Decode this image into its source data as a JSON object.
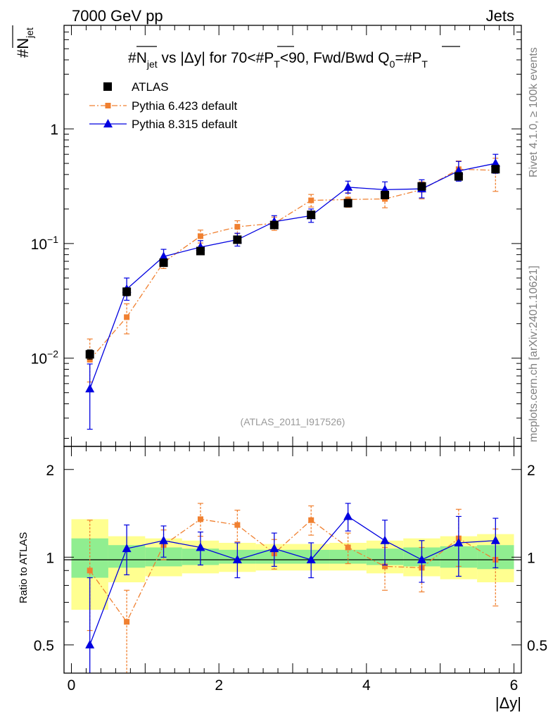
{
  "header": {
    "left": "7000 GeV pp",
    "right": "Jets"
  },
  "side_labels": {
    "rivet": "Rivet 4.1.0, ≥ 100k events",
    "mcplots": "mcplots.cern.ch [arXiv:2401.10621]"
  },
  "colors": {
    "atlas": "#000000",
    "pythia6": "#f08030",
    "pythia8": "#0000e0",
    "band_inner": "#90ee90",
    "band_outer": "#ffff90"
  },
  "chart_data": [
    {
      "type": "scatter",
      "title_parts": {
        "a": "#N",
        "a_sub": "jet",
        "b": " vs |Δy| for 70<#P",
        "b_sub": "T",
        "c": "<90, Fwd/Bwd Q",
        "c_sub": "0",
        "d": "=#P",
        "d_sub": "T"
      },
      "ylabel": {
        "main": "#N",
        "sub": "jet"
      },
      "yscale": "log",
      "ylim": [
        0.0017,
        8
      ],
      "xlim": [
        -0.1,
        6.1
      ],
      "y_major_ticks": [
        {
          "value": 0.01,
          "label_base": "10",
          "label_exp": "−2"
        },
        {
          "value": 0.1,
          "label_base": "10",
          "label_exp": "−1"
        },
        {
          "value": 1,
          "label_base": "1",
          "label_exp": ""
        }
      ],
      "watermark": "(ATLAS_2011_I917526)",
      "legend": [
        {
          "name": "ATLAS",
          "marker": "square"
        },
        {
          "name": "Pythia 6.423 default",
          "marker": "small-square",
          "style": "dashdot"
        },
        {
          "name": "Pythia 8.315 default",
          "marker": "triangle",
          "style": "solid"
        }
      ],
      "x": [
        0.25,
        0.75,
        1.25,
        1.75,
        2.25,
        2.75,
        3.25,
        3.75,
        4.25,
        4.75,
        5.25,
        5.75
      ],
      "series": [
        {
          "name": "ATLAS",
          "values": [
            0.0108,
            0.038,
            0.068,
            0.086,
            0.108,
            0.145,
            0.178,
            0.225,
            0.265,
            0.315,
            0.385,
            0.445
          ],
          "err_up": [
            0.001,
            0.003,
            0.004,
            0.005,
            0.006,
            0.008,
            0.01,
            0.013,
            0.015,
            0.02,
            0.025,
            0.03
          ],
          "err_down": [
            0.001,
            0.003,
            0.004,
            0.005,
            0.006,
            0.008,
            0.01,
            0.013,
            0.015,
            0.02,
            0.025,
            0.03
          ]
        },
        {
          "name": "Pythia 6.423 default",
          "values": [
            0.0097,
            0.0228,
            0.0685,
            0.116,
            0.14,
            0.15,
            0.238,
            0.242,
            0.245,
            0.295,
            0.445,
            0.435
          ],
          "err_up": [
            0.005,
            0.007,
            0.008,
            0.015,
            0.018,
            0.02,
            0.03,
            0.035,
            0.04,
            0.05,
            0.08,
            0.12
          ],
          "err_down": [
            0.0035,
            0.0065,
            0.008,
            0.015,
            0.018,
            0.02,
            0.03,
            0.035,
            0.04,
            0.05,
            0.08,
            0.15
          ]
        },
        {
          "name": "Pythia 8.315 default",
          "values": [
            0.0054,
            0.04,
            0.077,
            0.093,
            0.108,
            0.155,
            0.175,
            0.31,
            0.295,
            0.3,
            0.43,
            0.5
          ],
          "err_up": [
            0.0035,
            0.01,
            0.012,
            0.013,
            0.015,
            0.02,
            0.025,
            0.04,
            0.05,
            0.06,
            0.09,
            0.1
          ],
          "err_down": [
            0.003,
            0.008,
            0.01,
            0.011,
            0.013,
            0.018,
            0.022,
            0.035,
            0.045,
            0.05,
            0.08,
            0.09
          ]
        }
      ]
    },
    {
      "type": "scatter",
      "ylabel": "Ratio to ATLAS",
      "xlabel": "|Δy|",
      "yscale": "log",
      "ylim": [
        0.4,
        2.4
      ],
      "xlim": [
        -0.1,
        6.1
      ],
      "x_ticks": [
        0,
        2,
        4,
        6
      ],
      "y_major_ticks": [
        0.5,
        1,
        2
      ],
      "bins": [
        0,
        0.5,
        1.0,
        1.5,
        2.0,
        2.5,
        3.0,
        3.5,
        4.0,
        4.5,
        5.0,
        5.5,
        6.0
      ],
      "band_inner": {
        "lower": [
          0.85,
          0.92,
          0.93,
          0.94,
          0.95,
          0.95,
          0.95,
          0.95,
          0.94,
          0.93,
          0.92,
          0.91
        ],
        "upper": [
          1.16,
          1.1,
          1.08,
          1.07,
          1.06,
          1.06,
          1.06,
          1.06,
          1.07,
          1.08,
          1.09,
          1.1
        ]
      },
      "band_outer": {
        "lower": [
          0.66,
          0.82,
          0.86,
          0.88,
          0.89,
          0.9,
          0.9,
          0.9,
          0.88,
          0.86,
          0.84,
          0.82
        ],
        "upper": [
          1.35,
          1.18,
          1.16,
          1.14,
          1.12,
          1.11,
          1.11,
          1.12,
          1.14,
          1.16,
          1.18,
          1.2
        ]
      },
      "x": [
        0.25,
        0.75,
        1.25,
        1.75,
        2.25,
        2.75,
        3.25,
        3.75,
        4.25,
        4.75,
        5.25,
        5.75
      ],
      "series": [
        {
          "name": "Pythia 6.423 default",
          "values": [
            0.9,
            0.6,
            1.1,
            1.35,
            1.29,
            1.03,
            1.34,
            1.08,
            0.93,
            0.92,
            1.16,
            0.98
          ],
          "err_up": [
            0.44,
            0.17,
            0.14,
            0.18,
            0.16,
            0.12,
            0.16,
            0.13,
            0.15,
            0.16,
            0.3,
            0.27
          ],
          "err_down": [
            0.34,
            0.22,
            0.12,
            0.17,
            0.16,
            0.12,
            0.15,
            0.13,
            0.16,
            0.16,
            0.23,
            0.3
          ]
        },
        {
          "name": "Pythia 8.315 default",
          "values": [
            0.5,
            1.07,
            1.14,
            1.08,
            0.98,
            1.07,
            0.98,
            1.38,
            1.14,
            0.98,
            1.12,
            1.14
          ],
          "err_up": [
            0.35,
            0.22,
            0.14,
            0.14,
            0.14,
            0.14,
            0.14,
            0.15,
            0.2,
            0.16,
            0.26,
            0.22
          ],
          "err_down": [
            0.25,
            0.2,
            0.14,
            0.14,
            0.13,
            0.14,
            0.13,
            0.15,
            0.2,
            0.16,
            0.26,
            0.22
          ]
        }
      ]
    }
  ]
}
